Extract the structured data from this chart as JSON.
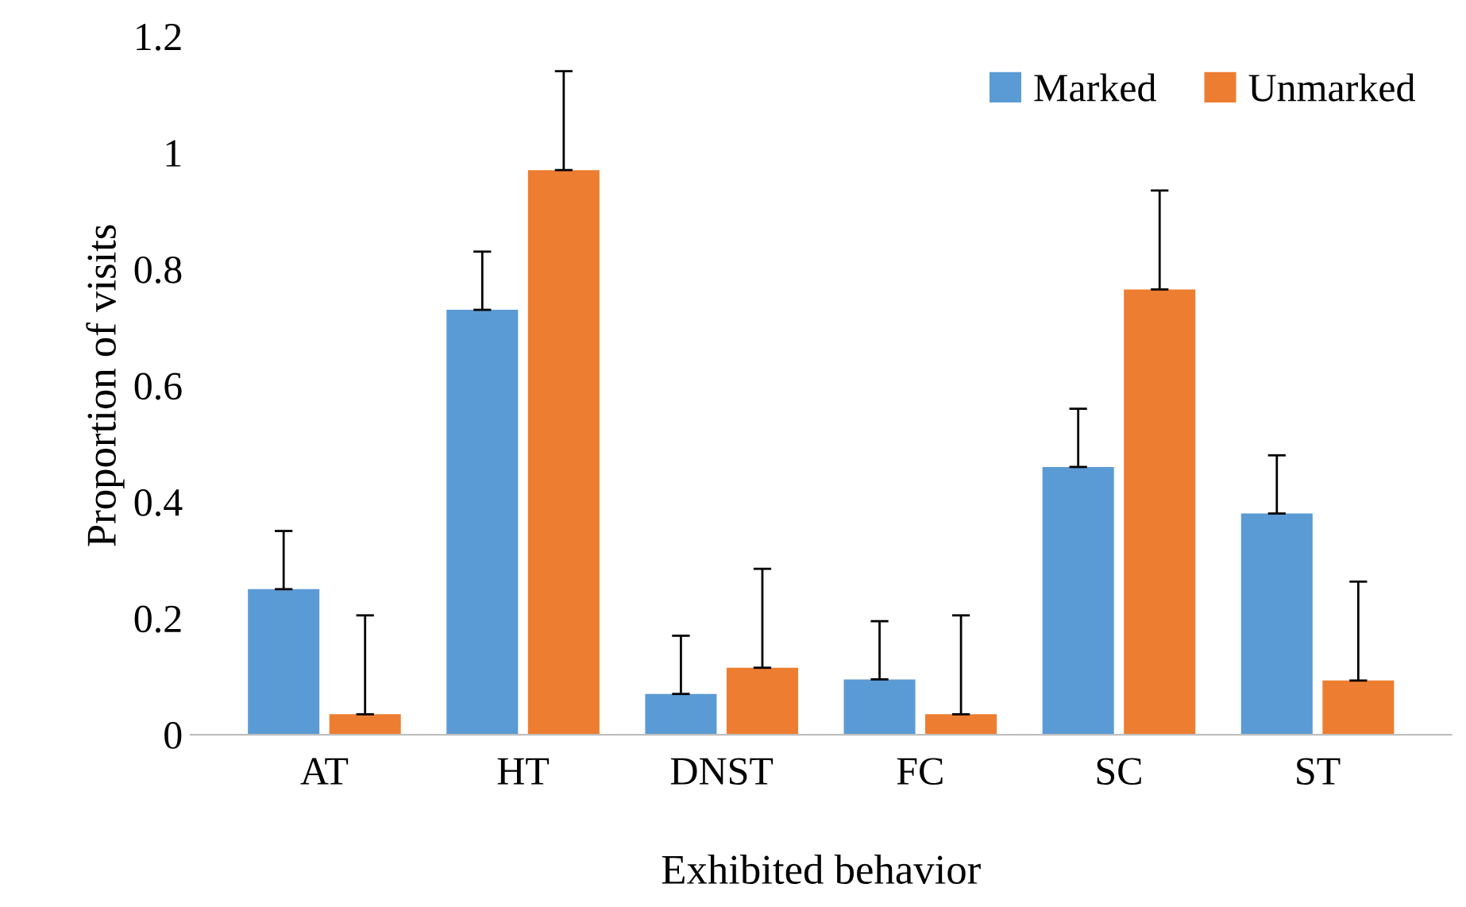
{
  "chart_data": {
    "type": "bar",
    "xlabel": "Exhibited behavior",
    "ylabel": "Proportion of visits",
    "categories": [
      "AT",
      "HT",
      "DNST",
      "FC",
      "SC",
      "ST"
    ],
    "series": [
      {
        "name": "Marked",
        "color": "#5b9bd5",
        "values": [
          0.25,
          0.73,
          0.07,
          0.095,
          0.46,
          0.38
        ],
        "errors": [
          [
            0.25,
            0.35
          ],
          [
            0.73,
            0.83
          ],
          [
            0.07,
            0.17
          ],
          [
            0.095,
            0.195
          ],
          [
            0.46,
            0.56
          ],
          [
            0.38,
            0.48
          ]
        ]
      },
      {
        "name": "Unmarked",
        "color": "#ed7d31",
        "values": [
          0.035,
          0.97,
          0.115,
          0.035,
          0.765,
          0.093
        ],
        "errors": [
          [
            0.035,
            0.205
          ],
          [
            0.97,
            1.14
          ],
          [
            0.115,
            0.285
          ],
          [
            0.035,
            0.205
          ],
          [
            0.765,
            0.935
          ],
          [
            0.093,
            0.263
          ]
        ]
      }
    ],
    "ylim": [
      0,
      1.2
    ],
    "yticks": [
      0,
      0.2,
      0.4,
      0.6,
      0.8,
      1,
      1.2
    ],
    "grid": false,
    "legend": "top right"
  }
}
